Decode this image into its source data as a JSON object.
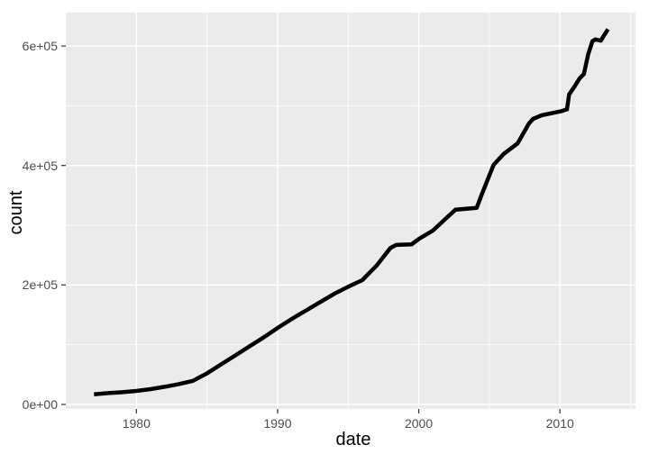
{
  "chart_data": {
    "type": "line",
    "title": "",
    "xlabel": "date",
    "ylabel": "count",
    "grid": "major+minor",
    "legend": "none",
    "x_axis": {
      "ticks": [
        1980,
        1990,
        2000,
        2010
      ],
      "tick_labels": [
        "1980",
        "1990",
        "2000",
        "2010"
      ],
      "minor_ticks": [
        1985,
        1995,
        2005,
        2015
      ],
      "range": [
        1975.0,
        2015.35
      ]
    },
    "y_axis": {
      "ticks": [
        0,
        200000,
        400000,
        600000
      ],
      "tick_labels": [
        "0e+00",
        "2e+05",
        "4e+05",
        "6e+05"
      ],
      "minor_ticks": [
        100000,
        300000,
        500000
      ],
      "range": [
        -7600,
        655900
      ]
    },
    "series": [
      {
        "name": "count",
        "color": "#000000",
        "points": [
          [
            1977.0,
            17000
          ],
          [
            1978.0,
            19000
          ],
          [
            1979.0,
            20500
          ],
          [
            1980.0,
            22500
          ],
          [
            1981.0,
            25500
          ],
          [
            1982.0,
            29500
          ],
          [
            1983.0,
            34000
          ],
          [
            1984.0,
            39500
          ],
          [
            1985.0,
            52000
          ],
          [
            1986.0,
            67000
          ],
          [
            1987.0,
            82000
          ],
          [
            1988.0,
            97000
          ],
          [
            1989.0,
            112000
          ],
          [
            1990.0,
            128000
          ],
          [
            1991.0,
            143000
          ],
          [
            1992.0,
            157000
          ],
          [
            1993.0,
            171000
          ],
          [
            1994.0,
            185000
          ],
          [
            1995.0,
            197000
          ],
          [
            1996.0,
            208000
          ],
          [
            1997.0,
            232000
          ],
          [
            1998.0,
            262000
          ],
          [
            1998.4,
            267000
          ],
          [
            1999.5,
            268000
          ],
          [
            2000.0,
            277000
          ],
          [
            2001.0,
            291000
          ],
          [
            2002.0,
            313000
          ],
          [
            2002.6,
            326000
          ],
          [
            2004.1,
            329000
          ],
          [
            2004.5,
            354000
          ],
          [
            2005.3,
            401000
          ],
          [
            2006.0,
            419000
          ],
          [
            2007.0,
            437000
          ],
          [
            2007.8,
            470000
          ],
          [
            2008.1,
            478000
          ],
          [
            2008.7,
            484000
          ],
          [
            2010.1,
            491000
          ],
          [
            2010.5,
            494000
          ],
          [
            2010.65,
            519000
          ],
          [
            2011.0,
            531000
          ],
          [
            2011.4,
            546000
          ],
          [
            2011.7,
            553000
          ],
          [
            2012.0,
            586000
          ],
          [
            2012.3,
            608000
          ],
          [
            2012.5,
            611000
          ],
          [
            2012.9,
            609000
          ],
          [
            2013.1,
            617000
          ],
          [
            2013.4,
            628000
          ]
        ]
      }
    ],
    "style": {
      "panel_bg": "#EBEBEB",
      "grid_color": "#FFFFFF",
      "line_color": "#000000",
      "tick_label_color": "#4D4D4D",
      "tick_mark_color": "#333333",
      "axis_title_color": "#000000",
      "outer_bg": "#FFFFFF"
    }
  }
}
